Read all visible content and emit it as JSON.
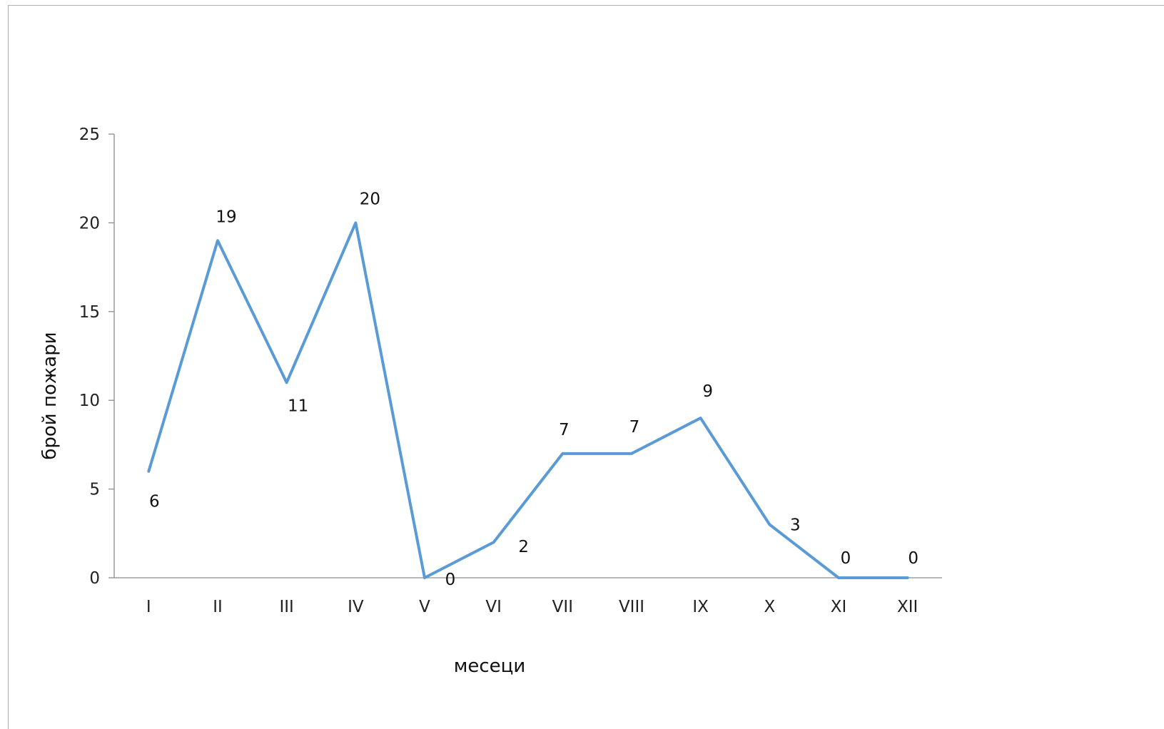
{
  "chart_data": {
    "type": "line",
    "title": "",
    "xlabel": "месеци",
    "ylabel": "брой пожари",
    "categories": [
      "I",
      "II",
      "III",
      "IV",
      "V",
      "VI",
      "VII",
      "VIII",
      "IX",
      "X",
      "XI",
      "XII"
    ],
    "series": [
      {
        "values": [
          6,
          19,
          11,
          20,
          0,
          2,
          7,
          7,
          9,
          3,
          0,
          0
        ],
        "color": "#5b9bd5"
      }
    ],
    "data_labels": [
      "6",
      "19",
      "11",
      "20",
      "0",
      "2",
      "7",
      "7",
      "9",
      "3",
      "0",
      "0"
    ],
    "ylim": [
      0,
      25
    ],
    "yticks": [
      "0",
      "5",
      "10",
      "15",
      "20",
      "25"
    ],
    "grid": false,
    "legend": "none"
  }
}
